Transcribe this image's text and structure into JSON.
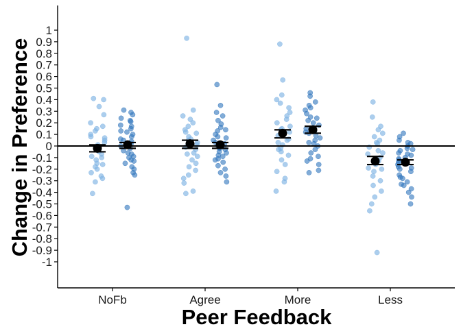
{
  "chart_data": {
    "type": "scatter",
    "xlabel": "Peer Feedback",
    "ylabel": "Change in  Preference",
    "ylim": [
      -1.1,
      1.1
    ],
    "y_ticks": [
      {
        "value": 1,
        "label": "1"
      },
      {
        "value": 0.9,
        "label": "0.9"
      },
      {
        "value": 0.8,
        "label": "0.8"
      },
      {
        "value": 0.7,
        "label": "0.7"
      },
      {
        "value": 0.6,
        "label": "0.6"
      },
      {
        "value": 0.5,
        "label": "0.5"
      },
      {
        "value": 0.4,
        "label": "0.4"
      },
      {
        "value": 0.3,
        "label": "0.3"
      },
      {
        "value": 0.2,
        "label": "0.2"
      },
      {
        "value": 0.1,
        "label": "0.1"
      },
      {
        "value": 0,
        "label": "0"
      },
      {
        "value": -0.1,
        "label": "-0.1"
      },
      {
        "value": -0.2,
        "label": "-0.2"
      },
      {
        "value": -0.3,
        "label": "-0.3"
      },
      {
        "value": -0.4,
        "label": "-0.4"
      },
      {
        "value": -0.5,
        "label": "-0.5"
      },
      {
        "value": -0.6,
        "label": "-0.6"
      },
      {
        "value": -0.7,
        "label": "-0.7"
      },
      {
        "value": -0.8,
        "label": "-0.8"
      },
      {
        "value": -0.9,
        "label": "-0.9"
      },
      {
        "value": -1,
        "label": "-1"
      }
    ],
    "categories": [
      "NoFb",
      "Agree",
      "More",
      "Less"
    ],
    "reference_line": 0,
    "grid": false,
    "colors": {
      "series1": "#7fb3e3",
      "series2": "#2e74bd",
      "mean": "#000000"
    },
    "groups": [
      {
        "category": "NoFb",
        "series1": {
          "mean": -0.02,
          "ci": [
            -0.05,
            0.01
          ],
          "points": [
            0.41,
            0.4,
            0.34,
            0.27,
            0.2,
            0.17,
            0.13,
            0.1,
            0.08,
            0.05,
            0.03,
            0.01,
            -0.01,
            -0.03,
            -0.05,
            -0.07,
            -0.1,
            -0.12,
            -0.15,
            -0.16,
            -0.18,
            -0.2,
            -0.23,
            -0.26,
            -0.28,
            -0.31,
            -0.41,
            0.07,
            -0.09,
            0.15
          ]
        },
        "series2": {
          "mean": 0.01,
          "ci": [
            -0.02,
            0.03
          ],
          "points": [
            0.31,
            0.29,
            0.27,
            0.24,
            0.21,
            0.18,
            0.15,
            0.12,
            0.1,
            0.08,
            0.06,
            0.04,
            0.02,
            0.0,
            -0.02,
            -0.04,
            -0.06,
            -0.09,
            -0.12,
            -0.15,
            -0.18,
            -0.2,
            -0.23,
            -0.25,
            -0.53,
            0.13,
            -0.07,
            0.17,
            0.05,
            -0.1,
            0.22,
            -0.13
          ]
        }
      },
      {
        "category": "Agree",
        "series1": {
          "mean": 0.02,
          "ci": [
            -0.02,
            0.05
          ],
          "points": [
            0.93,
            0.31,
            0.26,
            0.23,
            0.2,
            0.17,
            0.14,
            0.11,
            0.08,
            0.06,
            0.03,
            0.01,
            -0.01,
            -0.03,
            -0.06,
            -0.09,
            -0.12,
            -0.15,
            -0.18,
            -0.21,
            -0.25,
            -0.28,
            -0.32,
            -0.39,
            -0.41,
            0.12,
            -0.07,
            0.05
          ]
        },
        "series2": {
          "mean": 0.01,
          "ci": [
            -0.02,
            0.03
          ],
          "points": [
            0.53,
            0.35,
            0.29,
            0.26,
            0.22,
            0.19,
            0.16,
            0.13,
            0.1,
            0.08,
            0.05,
            0.03,
            0.01,
            -0.01,
            -0.03,
            -0.05,
            -0.08,
            -0.11,
            -0.14,
            -0.17,
            -0.2,
            -0.23,
            -0.26,
            -0.31,
            0.14,
            -0.06,
            0.07,
            -0.12,
            0.02,
            -0.02,
            -0.09
          ]
        }
      },
      {
        "category": "More",
        "series1": {
          "mean": 0.11,
          "ci": [
            0.07,
            0.14
          ],
          "points": [
            0.88,
            0.57,
            0.44,
            0.4,
            0.37,
            0.33,
            0.29,
            0.26,
            0.23,
            0.2,
            0.17,
            0.14,
            0.12,
            0.09,
            0.06,
            0.03,
            0.01,
            -0.02,
            -0.05,
            -0.08,
            -0.12,
            -0.16,
            -0.22,
            -0.28,
            -0.31,
            -0.39,
            0.15,
            0.05,
            -0.03
          ]
        },
        "series2": {
          "mean": 0.14,
          "ci": [
            0.11,
            0.17
          ],
          "points": [
            0.46,
            0.43,
            0.38,
            0.35,
            0.31,
            0.28,
            0.25,
            0.22,
            0.2,
            0.18,
            0.15,
            0.13,
            0.11,
            0.09,
            0.07,
            0.05,
            0.03,
            0.0,
            -0.03,
            -0.06,
            -0.09,
            -0.13,
            -0.16,
            -0.21,
            -0.23,
            0.24,
            0.12,
            0.02,
            -0.11,
            0.33
          ]
        }
      },
      {
        "category": "Less",
        "series1": {
          "mean": -0.13,
          "ci": [
            -0.16,
            -0.09
          ],
          "points": [
            0.38,
            0.25,
            0.17,
            0.14,
            0.11,
            0.08,
            0.05,
            0.02,
            -0.01,
            -0.04,
            -0.07,
            -0.1,
            -0.13,
            -0.16,
            -0.19,
            -0.22,
            -0.26,
            -0.3,
            -0.34,
            -0.39,
            -0.44,
            -0.5,
            -0.56,
            -0.92,
            -0.06,
            -0.2,
            0.03
          ]
        },
        "series2": {
          "mean": -0.14,
          "ci": [
            -0.16,
            -0.12
          ],
          "points": [
            0.11,
            0.08,
            0.05,
            0.02,
            0.0,
            -0.02,
            -0.04,
            -0.06,
            -0.08,
            -0.1,
            -0.12,
            -0.14,
            -0.16,
            -0.18,
            -0.2,
            -0.22,
            -0.25,
            -0.28,
            -0.31,
            -0.34,
            -0.37,
            -0.4,
            -0.44,
            -0.5,
            -0.07,
            -0.15,
            -0.27,
            -0.03,
            -0.19,
            -0.33,
            0.03,
            -0.11
          ]
        }
      }
    ]
  }
}
